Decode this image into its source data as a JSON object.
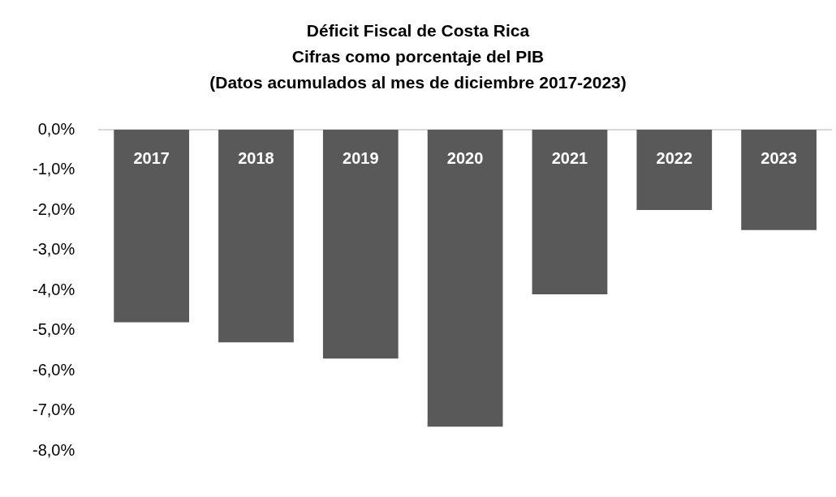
{
  "chart_data": {
    "type": "bar",
    "title": "Déficit Fiscal de Costa Rica\nCifras como porcentaje del PIB\n(Datos acumulados al mes de diciembre 2017-2023)",
    "categories": [
      "2017",
      "2018",
      "2019",
      "2020",
      "2021",
      "2022",
      "2023"
    ],
    "values": [
      -4.8,
      -5.3,
      -5.7,
      -7.4,
      -4.1,
      -2.0,
      -2.5
    ],
    "color": "#595959",
    "ylim": [
      -8,
      0
    ],
    "yticks": [
      {
        "value": 0,
        "label": "0,0%"
      },
      {
        "value": -1,
        "label": "-1,0%"
      },
      {
        "value": -2,
        "label": "-2,0%"
      },
      {
        "value": -3,
        "label": "-3,0%"
      },
      {
        "value": -4,
        "label": "-4,0%"
      },
      {
        "value": -5,
        "label": "-5,0%"
      },
      {
        "value": -6,
        "label": "-6,0%"
      },
      {
        "value": -7,
        "label": "-7,0%"
      },
      {
        "value": -8,
        "label": "-8,0%"
      }
    ],
    "grid": false
  }
}
